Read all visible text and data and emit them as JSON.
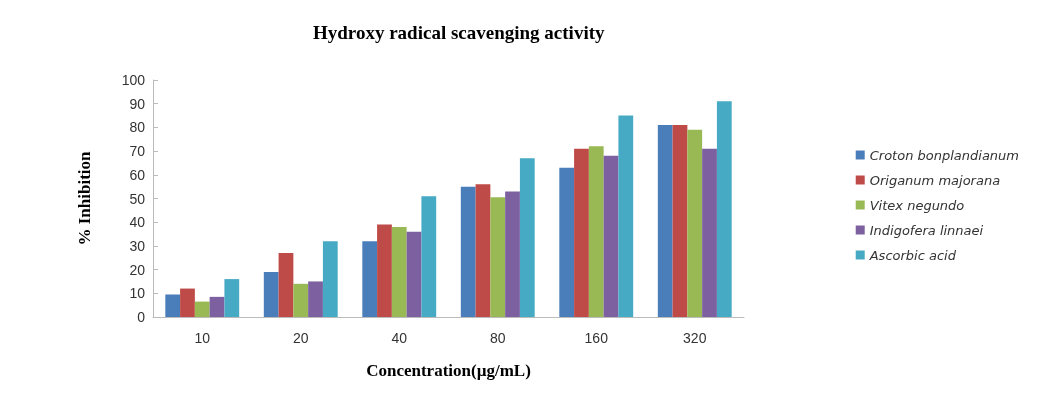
{
  "chart_data": {
    "type": "bar",
    "title": "Hydroxy radical scavenging activity",
    "xlabel": "Concentration(µg/mL)",
    "ylabel": "% Inhibition",
    "categories": [
      "10",
      "20",
      "40",
      "80",
      "160",
      "320"
    ],
    "series": [
      {
        "name": "Croton bonplandianum",
        "color": "#4a7ebb",
        "values": [
          9.5,
          19,
          32,
          55,
          63,
          81
        ]
      },
      {
        "name": "Origanum majorana",
        "color": "#be4b48",
        "values": [
          12,
          27,
          39,
          56,
          71,
          81
        ]
      },
      {
        "name": "Vitex negundo",
        "color": "#98b954",
        "values": [
          6.5,
          14,
          38,
          50.5,
          72,
          79
        ]
      },
      {
        "name": "Indigofera linnaei",
        "color": "#7d60a0",
        "values": [
          8.5,
          15,
          36,
          53,
          68,
          71
        ]
      },
      {
        "name": "Ascorbic acid",
        "color": "#46aac5",
        "values": [
          16,
          32,
          51,
          67,
          85,
          91
        ]
      }
    ],
    "ylim": [
      0,
      100
    ],
    "yticks": [
      0,
      10,
      20,
      30,
      40,
      50,
      60,
      70,
      80,
      90,
      100
    ],
    "grid": false,
    "legend": "right"
  }
}
